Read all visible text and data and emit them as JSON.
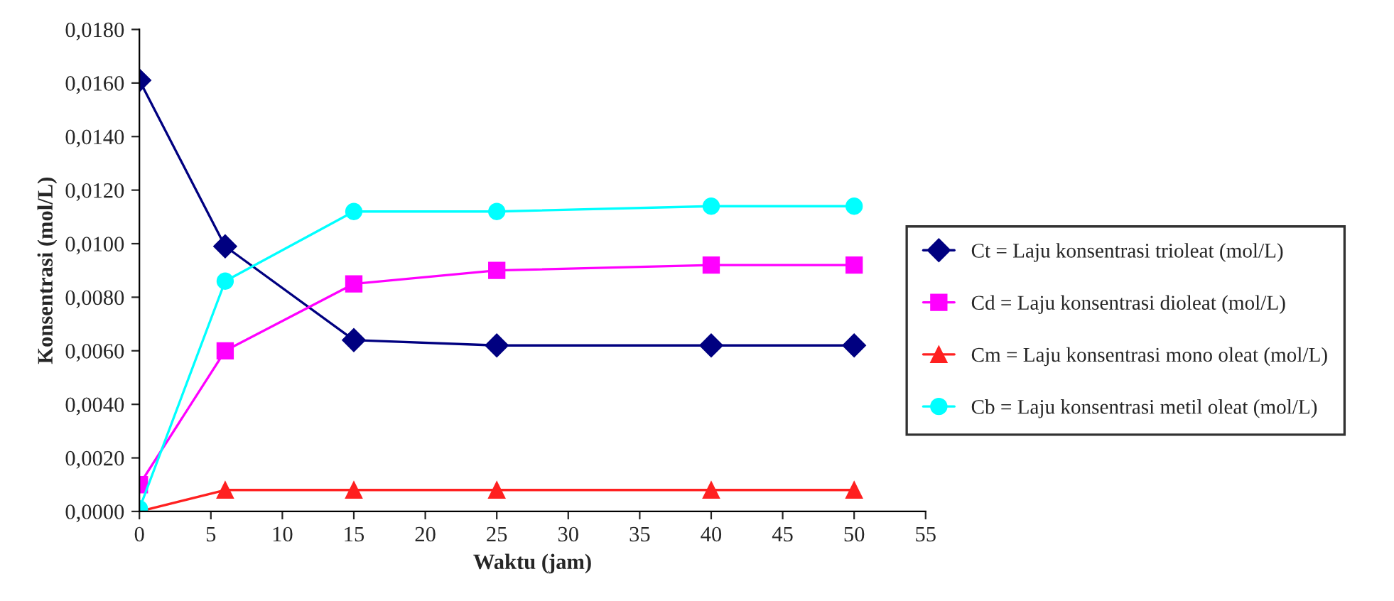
{
  "chart_data": {
    "type": "line",
    "xlabel": "Waktu (jam)",
    "ylabel": "Konsentrasi (mol/L)",
    "x": [
      0,
      6,
      15,
      25,
      40,
      50
    ],
    "series": [
      {
        "name": "Ct = Laju konsentrasi trioleat (mol/L)",
        "color": "#000080",
        "marker": "diamond",
        "values": [
          0.0161,
          0.0099,
          0.0064,
          0.0062,
          0.0062,
          0.0062
        ]
      },
      {
        "name": "Cd = Laju konsentrasi dioleat (mol/L)",
        "color": "#ff00ff",
        "marker": "square",
        "values": [
          0.001,
          0.006,
          0.0085,
          0.009,
          0.0092,
          0.0092
        ]
      },
      {
        "name": "Cm = Laju konsentrasi mono oleat (mol/L)",
        "color": "#ff2020",
        "marker": "triangle",
        "values": [
          0.0,
          0.0008,
          0.0008,
          0.0008,
          0.0008,
          0.0008
        ]
      },
      {
        "name": "Cb = Laju konsentrasi metil oleat (mol/L)",
        "color": "#00ffff",
        "marker": "circle",
        "values": [
          0.0001,
          0.0086,
          0.0112,
          0.0112,
          0.0114,
          0.0114
        ]
      }
    ],
    "xlim": [
      0,
      55
    ],
    "xticks": [
      0,
      5,
      10,
      15,
      20,
      25,
      30,
      35,
      40,
      45,
      50,
      55
    ],
    "ylim": [
      0,
      0.018
    ],
    "yticks": [
      {
        "value": 0,
        "label": "0,0000"
      },
      {
        "value": 0.002,
        "label": "0,0020"
      },
      {
        "value": 0.004,
        "label": "0,0040"
      },
      {
        "value": 0.006,
        "label": "0,0060"
      },
      {
        "value": 0.008,
        "label": "0,0080"
      },
      {
        "value": 0.01,
        "label": "0,0100"
      },
      {
        "value": 0.012,
        "label": "0,0120"
      },
      {
        "value": 0.014,
        "label": "0,0140"
      },
      {
        "value": 0.016,
        "label": "0,0160"
      },
      {
        "value": 0.018,
        "label": "0,0180"
      }
    ],
    "grid": false,
    "legend": "right",
    "line_style": "solid"
  }
}
